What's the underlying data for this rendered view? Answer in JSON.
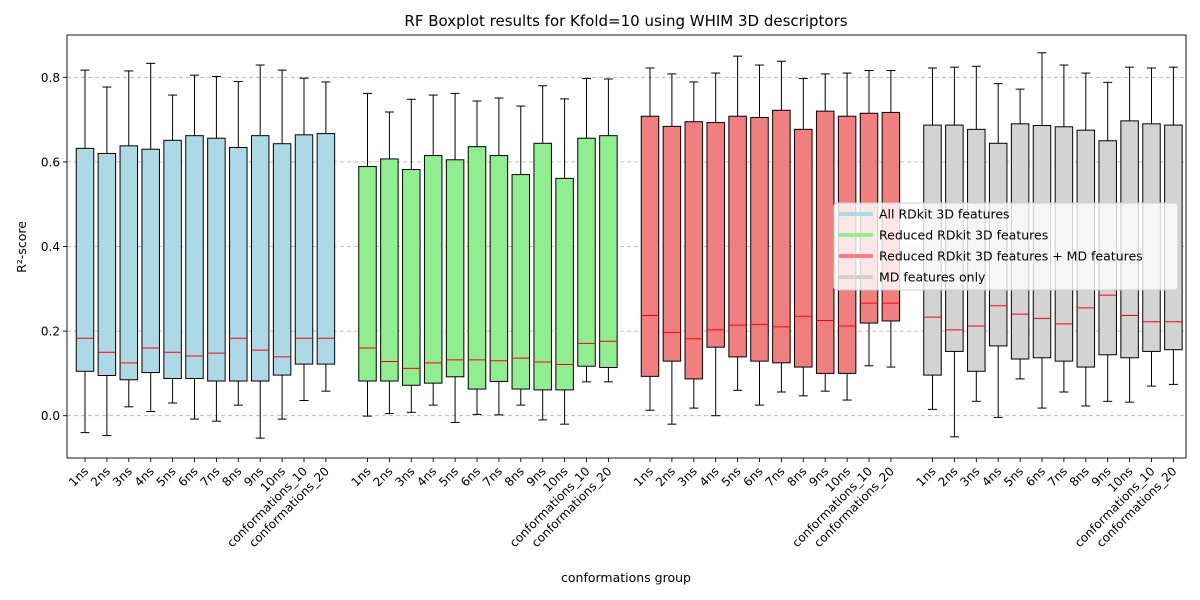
{
  "chart_data": {
    "type": "box",
    "title": "RF Boxplot results for Kfold=10 using WHIM 3D descriptors",
    "xlabel": "conformations group",
    "ylabel": "R²-score",
    "ylim": [
      -0.1,
      0.9
    ],
    "yticks": [
      "0.0",
      "0.2",
      "0.4",
      "0.6",
      "0.8"
    ],
    "ytick_values": [
      0.0,
      0.2,
      0.4,
      0.6,
      0.8
    ],
    "grid": "horizontal dashed",
    "legend_position": "center-right",
    "median_color": "#ff0000",
    "categories": [
      "1ns",
      "2ns",
      "3ns",
      "4ns",
      "5ns",
      "6ns",
      "7ns",
      "8ns",
      "9ns",
      "10ns",
      "conformations_10",
      "conformations_20"
    ],
    "series": [
      {
        "name": "All RDkit 3D features",
        "color": "#add8e6",
        "boxes": [
          {
            "whislo": -0.04,
            "q1": 0.105,
            "med": 0.183,
            "q3": 0.632,
            "whishi": 0.817
          },
          {
            "whislo": -0.047,
            "q1": 0.095,
            "med": 0.15,
            "q3": 0.62,
            "whishi": 0.777
          },
          {
            "whislo": 0.021,
            "q1": 0.085,
            "med": 0.125,
            "q3": 0.638,
            "whishi": 0.815
          },
          {
            "whislo": 0.01,
            "q1": 0.102,
            "med": 0.16,
            "q3": 0.63,
            "whishi": 0.833
          },
          {
            "whislo": 0.03,
            "q1": 0.088,
            "med": 0.15,
            "q3": 0.651,
            "whishi": 0.758
          },
          {
            "whislo": -0.008,
            "q1": 0.088,
            "med": 0.141,
            "q3": 0.662,
            "whishi": 0.805
          },
          {
            "whislo": -0.013,
            "q1": 0.082,
            "med": 0.148,
            "q3": 0.656,
            "whishi": 0.802
          },
          {
            "whislo": 0.025,
            "q1": 0.082,
            "med": 0.183,
            "q3": 0.634,
            "whishi": 0.79
          },
          {
            "whislo": -0.053,
            "q1": 0.082,
            "med": 0.155,
            "q3": 0.662,
            "whishi": 0.829
          },
          {
            "whislo": -0.008,
            "q1": 0.096,
            "med": 0.139,
            "q3": 0.643,
            "whishi": 0.817
          },
          {
            "whislo": 0.036,
            "q1": 0.122,
            "med": 0.183,
            "q3": 0.664,
            "whishi": 0.798
          },
          {
            "whislo": 0.058,
            "q1": 0.122,
            "med": 0.183,
            "q3": 0.667,
            "whishi": 0.789
          }
        ]
      },
      {
        "name": "Reduced RDkit 3D features",
        "color": "#90ee90",
        "boxes": [
          {
            "whislo": -0.001,
            "q1": 0.082,
            "med": 0.16,
            "q3": 0.589,
            "whishi": 0.762
          },
          {
            "whislo": 0.005,
            "q1": 0.082,
            "med": 0.128,
            "q3": 0.607,
            "whishi": 0.718
          },
          {
            "whislo": 0.008,
            "q1": 0.072,
            "med": 0.112,
            "q3": 0.582,
            "whishi": 0.748
          },
          {
            "whislo": 0.025,
            "q1": 0.077,
            "med": 0.125,
            "q3": 0.615,
            "whishi": 0.758
          },
          {
            "whislo": -0.016,
            "q1": 0.092,
            "med": 0.132,
            "q3": 0.605,
            "whishi": 0.762
          },
          {
            "whislo": 0.003,
            "q1": 0.063,
            "med": 0.132,
            "q3": 0.636,
            "whishi": 0.744
          },
          {
            "whislo": 0.002,
            "q1": 0.081,
            "med": 0.13,
            "q3": 0.615,
            "whishi": 0.751
          },
          {
            "whislo": 0.025,
            "q1": 0.063,
            "med": 0.136,
            "q3": 0.57,
            "whishi": 0.732
          },
          {
            "whislo": -0.01,
            "q1": 0.061,
            "med": 0.127,
            "q3": 0.644,
            "whishi": 0.78
          },
          {
            "whislo": -0.02,
            "q1": 0.061,
            "med": 0.121,
            "q3": 0.561,
            "whishi": 0.749
          },
          {
            "whislo": 0.08,
            "q1": 0.117,
            "med": 0.171,
            "q3": 0.656,
            "whishi": 0.797
          },
          {
            "whislo": 0.08,
            "q1": 0.114,
            "med": 0.176,
            "q3": 0.662,
            "whishi": 0.796
          }
        ]
      },
      {
        "name": "Reduced RDkit 3D features + MD features",
        "color": "#f08080",
        "boxes": [
          {
            "whislo": 0.013,
            "q1": 0.093,
            "med": 0.237,
            "q3": 0.708,
            "whishi": 0.822
          },
          {
            "whislo": -0.02,
            "q1": 0.129,
            "med": 0.197,
            "q3": 0.684,
            "whishi": 0.808
          },
          {
            "whislo": 0.018,
            "q1": 0.087,
            "med": 0.182,
            "q3": 0.695,
            "whishi": 0.789
          },
          {
            "whislo": 0.0,
            "q1": 0.162,
            "med": 0.203,
            "q3": 0.693,
            "whishi": 0.81
          },
          {
            "whislo": 0.06,
            "q1": 0.139,
            "med": 0.214,
            "q3": 0.708,
            "whishi": 0.85
          },
          {
            "whislo": 0.025,
            "q1": 0.129,
            "med": 0.216,
            "q3": 0.705,
            "whishi": 0.829
          },
          {
            "whislo": 0.056,
            "q1": 0.125,
            "med": 0.21,
            "q3": 0.722,
            "whishi": 0.838
          },
          {
            "whislo": 0.047,
            "q1": 0.115,
            "med": 0.235,
            "q3": 0.677,
            "whishi": 0.797
          },
          {
            "whislo": 0.058,
            "q1": 0.1,
            "med": 0.225,
            "q3": 0.72,
            "whishi": 0.808
          },
          {
            "whislo": 0.037,
            "q1": 0.1,
            "med": 0.212,
            "q3": 0.708,
            "whishi": 0.81
          },
          {
            "whislo": 0.118,
            "q1": 0.219,
            "med": 0.266,
            "q3": 0.715,
            "whishi": 0.816
          },
          {
            "whislo": 0.115,
            "q1": 0.224,
            "med": 0.266,
            "q3": 0.717,
            "whishi": 0.816
          }
        ]
      },
      {
        "name": "MD features only",
        "color": "#d3d3d3",
        "boxes": [
          {
            "whislo": 0.015,
            "q1": 0.096,
            "med": 0.233,
            "q3": 0.687,
            "whishi": 0.822
          },
          {
            "whislo": -0.05,
            "q1": 0.152,
            "med": 0.203,
            "q3": 0.687,
            "whishi": 0.824
          },
          {
            "whislo": 0.034,
            "q1": 0.105,
            "med": 0.212,
            "q3": 0.677,
            "whishi": 0.826
          },
          {
            "whislo": -0.004,
            "q1": 0.165,
            "med": 0.26,
            "q3": 0.644,
            "whishi": 0.785
          },
          {
            "whislo": 0.087,
            "q1": 0.134,
            "med": 0.24,
            "q3": 0.69,
            "whishi": 0.772
          },
          {
            "whislo": 0.018,
            "q1": 0.137,
            "med": 0.23,
            "q3": 0.686,
            "whishi": 0.858
          },
          {
            "whislo": 0.056,
            "q1": 0.129,
            "med": 0.217,
            "q3": 0.683,
            "whishi": 0.829
          },
          {
            "whislo": 0.023,
            "q1": 0.115,
            "med": 0.255,
            "q3": 0.675,
            "whishi": 0.81
          },
          {
            "whislo": 0.034,
            "q1": 0.144,
            "med": 0.285,
            "q3": 0.65,
            "whishi": 0.788
          },
          {
            "whislo": 0.032,
            "q1": 0.137,
            "med": 0.237,
            "q3": 0.697,
            "whishi": 0.824
          },
          {
            "whislo": 0.07,
            "q1": 0.152,
            "med": 0.222,
            "q3": 0.69,
            "whishi": 0.822
          },
          {
            "whislo": 0.074,
            "q1": 0.156,
            "med": 0.222,
            "q3": 0.687,
            "whishi": 0.824
          }
        ]
      }
    ]
  }
}
